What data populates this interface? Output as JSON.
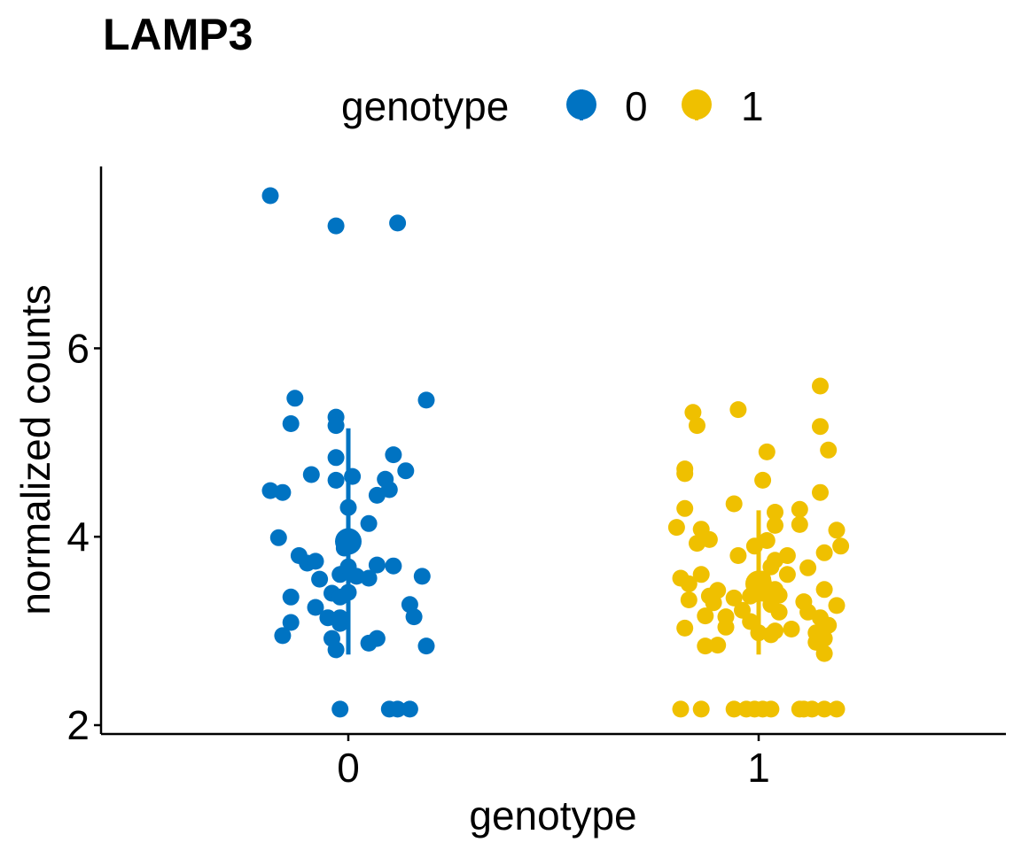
{
  "chart_data": {
    "type": "scatter",
    "title": "LAMP3",
    "xlabel": "genotype",
    "ylabel": "normalized counts",
    "categories": [
      "0",
      "1"
    ],
    "legend": {
      "title": "genotype",
      "position": "top",
      "entries": [
        "0",
        "1"
      ]
    },
    "ylim": [
      1.9,
      8.0
    ],
    "yticks": [
      2,
      4,
      6
    ],
    "grid": false,
    "colors": {
      "0": "#0073C2",
      "1": "#EFC000"
    },
    "series": [
      {
        "name": "0",
        "category": "0",
        "summary": {
          "mean": 3.95,
          "low": 2.75,
          "high": 5.15
        },
        "points": [
          [
            -0.19,
            7.62
          ],
          [
            -0.03,
            7.3
          ],
          [
            0.12,
            7.33
          ],
          [
            -0.13,
            5.47
          ],
          [
            0.19,
            5.45
          ],
          [
            -0.14,
            5.2
          ],
          [
            -0.03,
            5.27
          ],
          [
            -0.03,
            5.18
          ],
          [
            -0.03,
            4.84
          ],
          [
            0.11,
            4.87
          ],
          [
            0.14,
            4.7
          ],
          [
            -0.09,
            4.66
          ],
          [
            -0.03,
            4.6
          ],
          [
            0.01,
            4.64
          ],
          [
            0.09,
            4.61
          ],
          [
            -0.19,
            4.49
          ],
          [
            -0.16,
            4.47
          ],
          [
            0.07,
            4.44
          ],
          [
            0.1,
            4.5
          ],
          [
            0.0,
            4.31
          ],
          [
            0.05,
            4.14
          ],
          [
            -0.17,
            3.99
          ],
          [
            -0.01,
            3.88
          ],
          [
            0.0,
            3.96
          ],
          [
            -0.12,
            3.8
          ],
          [
            -0.1,
            3.72
          ],
          [
            -0.08,
            3.74
          ],
          [
            -0.02,
            3.6
          ],
          [
            0.0,
            3.68
          ],
          [
            0.02,
            3.58
          ],
          [
            0.07,
            3.7
          ],
          [
            0.11,
            3.69
          ],
          [
            -0.07,
            3.55
          ],
          [
            0.05,
            3.56
          ],
          [
            0.18,
            3.58
          ],
          [
            -0.04,
            3.4
          ],
          [
            0.0,
            3.41
          ],
          [
            -0.02,
            3.36
          ],
          [
            -0.14,
            3.36
          ],
          [
            0.15,
            3.28
          ],
          [
            -0.08,
            3.25
          ],
          [
            -0.05,
            3.14
          ],
          [
            -0.02,
            3.14
          ],
          [
            0.16,
            3.15
          ],
          [
            -0.14,
            3.09
          ],
          [
            -0.02,
            3.08
          ],
          [
            -0.16,
            2.95
          ],
          [
            -0.04,
            2.92
          ],
          [
            0.07,
            2.92
          ],
          [
            0.05,
            2.87
          ],
          [
            0.19,
            2.84
          ],
          [
            -0.03,
            2.8
          ],
          [
            -0.02,
            2.17
          ],
          [
            0.1,
            2.17
          ],
          [
            0.12,
            2.17
          ],
          [
            0.15,
            2.17
          ]
        ]
      },
      {
        "name": "1",
        "category": "1",
        "summary": {
          "mean": 3.5,
          "low": 2.75,
          "high": 4.28
        },
        "points": [
          [
            0.15,
            5.6
          ],
          [
            -0.16,
            5.32
          ],
          [
            -0.05,
            5.35
          ],
          [
            -0.15,
            5.18
          ],
          [
            0.15,
            5.17
          ],
          [
            0.17,
            4.92
          ],
          [
            0.02,
            4.9
          ],
          [
            -0.18,
            4.67
          ],
          [
            -0.18,
            4.72
          ],
          [
            0.01,
            4.6
          ],
          [
            0.15,
            4.47
          ],
          [
            -0.06,
            4.35
          ],
          [
            -0.18,
            4.3
          ],
          [
            0.1,
            4.29
          ],
          [
            0.04,
            4.26
          ],
          [
            0.1,
            4.13
          ],
          [
            0.04,
            4.12
          ],
          [
            -0.2,
            4.1
          ],
          [
            -0.14,
            4.08
          ],
          [
            0.19,
            4.07
          ],
          [
            -0.12,
            3.97
          ],
          [
            -0.15,
            3.93
          ],
          [
            0.02,
            3.96
          ],
          [
            -0.01,
            3.9
          ],
          [
            0.2,
            3.9
          ],
          [
            0.16,
            3.83
          ],
          [
            -0.05,
            3.8
          ],
          [
            0.07,
            3.8
          ],
          [
            0.04,
            3.75
          ],
          [
            0.12,
            3.67
          ],
          [
            0.03,
            3.68
          ],
          [
            -0.14,
            3.6
          ],
          [
            -0.19,
            3.56
          ],
          [
            0.01,
            3.55
          ],
          [
            0.07,
            3.6
          ],
          [
            -0.17,
            3.5
          ],
          [
            0.0,
            3.47
          ],
          [
            0.04,
            3.44
          ],
          [
            -0.1,
            3.43
          ],
          [
            0.16,
            3.44
          ],
          [
            -0.12,
            3.37
          ],
          [
            0.01,
            3.4
          ],
          [
            -0.02,
            3.37
          ],
          [
            0.05,
            3.38
          ],
          [
            -0.06,
            3.35
          ],
          [
            -0.17,
            3.33
          ],
          [
            -0.11,
            3.3
          ],
          [
            0.11,
            3.31
          ],
          [
            0.19,
            3.27
          ],
          [
            0.03,
            3.28
          ],
          [
            -0.04,
            3.22
          ],
          [
            0.05,
            3.2
          ],
          [
            -0.13,
            3.16
          ],
          [
            0.12,
            3.2
          ],
          [
            -0.08,
            3.15
          ],
          [
            0.15,
            3.14
          ],
          [
            -0.02,
            3.1
          ],
          [
            0.08,
            3.02
          ],
          [
            -0.18,
            3.03
          ],
          [
            -0.08,
            3.04
          ],
          [
            0.04,
            3.0
          ],
          [
            0.17,
            3.06
          ],
          [
            0.0,
            2.98
          ],
          [
            0.14,
            2.98
          ],
          [
            0.16,
            2.92
          ],
          [
            0.03,
            2.96
          ],
          [
            -0.1,
            2.85
          ],
          [
            -0.13,
            2.84
          ],
          [
            0.14,
            2.88
          ],
          [
            0.16,
            2.76
          ],
          [
            -0.19,
            2.17
          ],
          [
            -0.14,
            2.17
          ],
          [
            -0.06,
            2.17
          ],
          [
            -0.03,
            2.17
          ],
          [
            -0.01,
            2.17
          ],
          [
            0.01,
            2.17
          ],
          [
            0.03,
            2.17
          ],
          [
            0.1,
            2.17
          ],
          [
            0.11,
            2.17
          ],
          [
            0.13,
            2.17
          ],
          [
            0.16,
            2.17
          ],
          [
            0.19,
            2.17
          ]
        ]
      }
    ]
  }
}
